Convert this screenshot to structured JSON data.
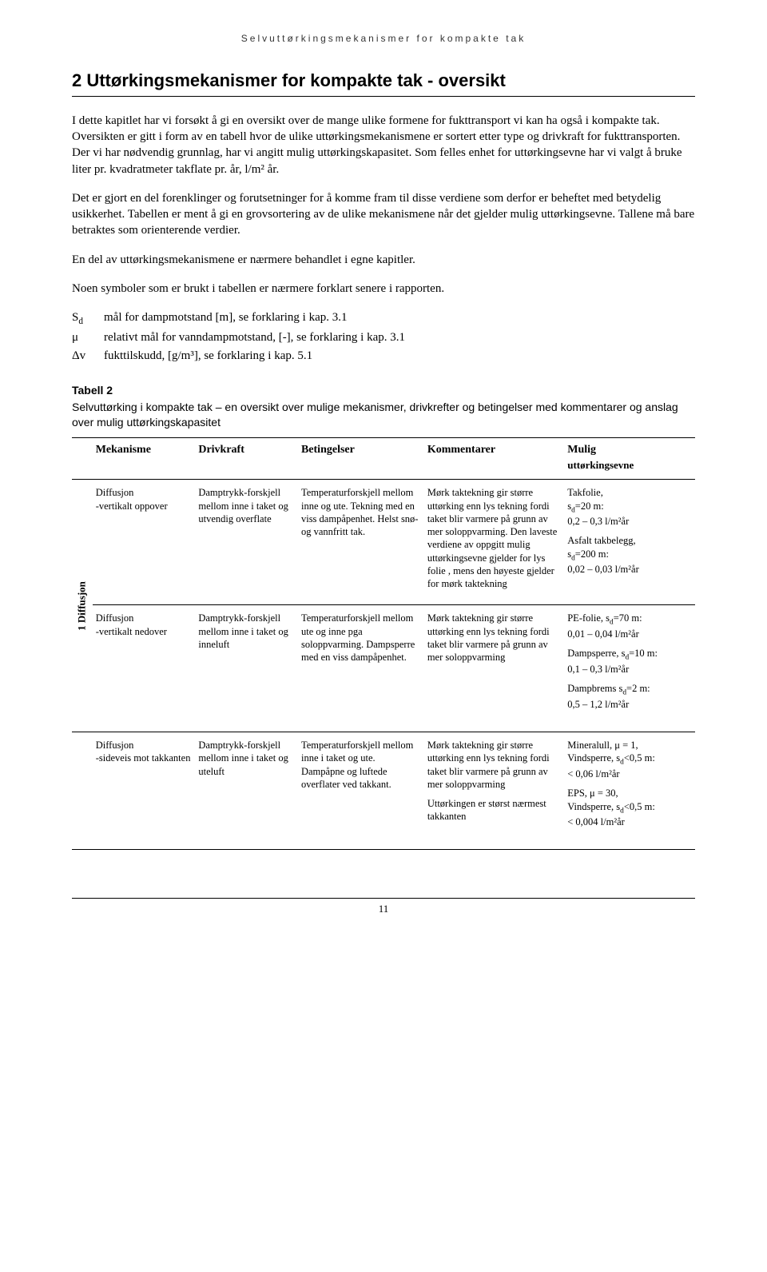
{
  "header": "Selvuttørkingsmekanismer for kompakte tak",
  "section_title": "2   Uttørkingsmekanismer for kompakte tak - oversikt",
  "p1": "I dette kapitlet har vi forsøkt å gi en oversikt over de mange ulike formene for fukttransport vi kan ha også i kompakte tak. Oversikten er gitt i form av en tabell hvor de ulike uttørkingsmekanismene er sortert etter type og drivkraft for fukttransporten. Der vi har nødvendig grunnlag, har vi angitt mulig uttørkingskapasitet. Som felles enhet for uttørkingsevne har vi valgt å bruke liter pr. kvadratmeter takflate pr. år, l/m² år.",
  "p2": "Det er gjort en del forenklinger og forutsetninger for å komme fram til disse verdiene som derfor er beheftet med betydelig usikkerhet. Tabellen er ment å gi en grovsortering av de ulike mekanismene når det gjelder mulig uttørkingsevne. Tallene må bare betraktes som orienterende verdier.",
  "p3": "En del av uttørkingsmekanismene er nærmere behandlet i egne kapitler.",
  "p4": "Noen symboler som er brukt i tabellen er nærmere forklart senere i rapporten.",
  "defs": [
    {
      "sym": "S",
      "sub": "d",
      "txt": "mål for dampmotstand [m], se forklaring i kap. 3.1"
    },
    {
      "sym": "μ",
      "sub": "",
      "txt": "relativt mål for vanndampmotstand, [-], se forklaring i kap. 3.1"
    },
    {
      "sym": "Δv",
      "sub": "",
      "txt": "fukttilskudd, [g/m³], se forklaring i kap. 5.1"
    }
  ],
  "table_label": "Tabell 2",
  "table_caption": "Selvuttørking i kompakte tak – en oversikt over mulige mekanismer, drivkrefter og betingelser med kommentarer og anslag over mulig uttørkingskapasitet",
  "headers": {
    "mech": "Mekanisme",
    "driv": "Drivkraft",
    "bet": "Betingelser",
    "kom": "Kommentarer",
    "mul": "Mulig",
    "mul2": "uttørkingsevne"
  },
  "side_label": "1 Diffusjon",
  "rows": [
    {
      "mech_t": "Diffusjon",
      "mech_s": "-vertikalt oppover",
      "driv": "Damptrykk-forskjell mellom inne i taket og utvendig overflate",
      "bet": "Temperaturforskjell mellom inne og ute. Tekning med en viss dampåpenhet. Helst snø- og vannfritt tak.",
      "kom": "Mørk taktekning gir større uttørking enn lys tekning fordi taket blir varmere på grunn av mer soloppvarming. Den laveste verdiene av oppgitt mulig uttørkingsevne gjelder for lys folie , mens den høyeste gjelder for mørk taktekning",
      "mul1": "Takfolie,",
      "mul2": "s",
      "mul2sub": "d",
      "mul2b": "=20 m:",
      "mul3": "0,2 – 0,3 l/m²år",
      "mul4": "Asfalt takbelegg,",
      "mul5": "s",
      "mul5sub": "d",
      "mul5b": "=200 m:",
      "mul6": "0,02 – 0,03 l/m²år"
    },
    {
      "mech_t": "Diffusjon",
      "mech_s": "-vertikalt nedover",
      "driv": "Damptrykk-forskjell mellom inne i taket og inneluft",
      "bet": "Temperaturforskjell mellom ute og inne pga soloppvarming. Dampsperre med en viss dampåpenhet.",
      "kom": "Mørk taktekning gir større uttørking enn lys tekning fordi taket blir varmere på grunn av mer soloppvarming",
      "mul1": "PE-folie, s",
      "mul1sub": "d",
      "mul1b": "=70 m:",
      "mul2": "0,01 – 0,04 l/m²år",
      "mul3": "Dampsperre, s",
      "mul3sub": "d",
      "mul3b": "=10 m:",
      "mul4": "0,1 – 0,3 l/m²år",
      "mul5": "Dampbrems s",
      "mul5sub": "d",
      "mul5b": "=2 m:",
      "mul6": "0,5 – 1,2 l/m²år"
    },
    {
      "mech_t": "Diffusjon",
      "mech_s": "-sideveis mot takkanten",
      "driv": "Damptrykk-forskjell mellom inne i taket og uteluft",
      "bet": "Temperaturforskjell mellom inne i taket og ute. Dampåpne og luftede overflater ved takkant.",
      "kom": "Mørk taktekning gir større uttørking enn lys tekning fordi taket blir varmere på grunn av mer soloppvarming",
      "kom2": "Uttørkingen er størst nærmest takkanten",
      "mul1": "Mineralull, μ = 1,",
      "mul2": "Vindsperre, s",
      "mul2sub": "d",
      "mul2b": "<0,5 m:",
      "mul3": "< 0,06 l/m²år",
      "mul4": "EPS, μ = 30,",
      "mul5": "Vindsperre, s",
      "mul5sub": "d",
      "mul5b": "<0,5 m:",
      "mul6": "< 0,004 l/m²år"
    }
  ],
  "page_no": "11"
}
